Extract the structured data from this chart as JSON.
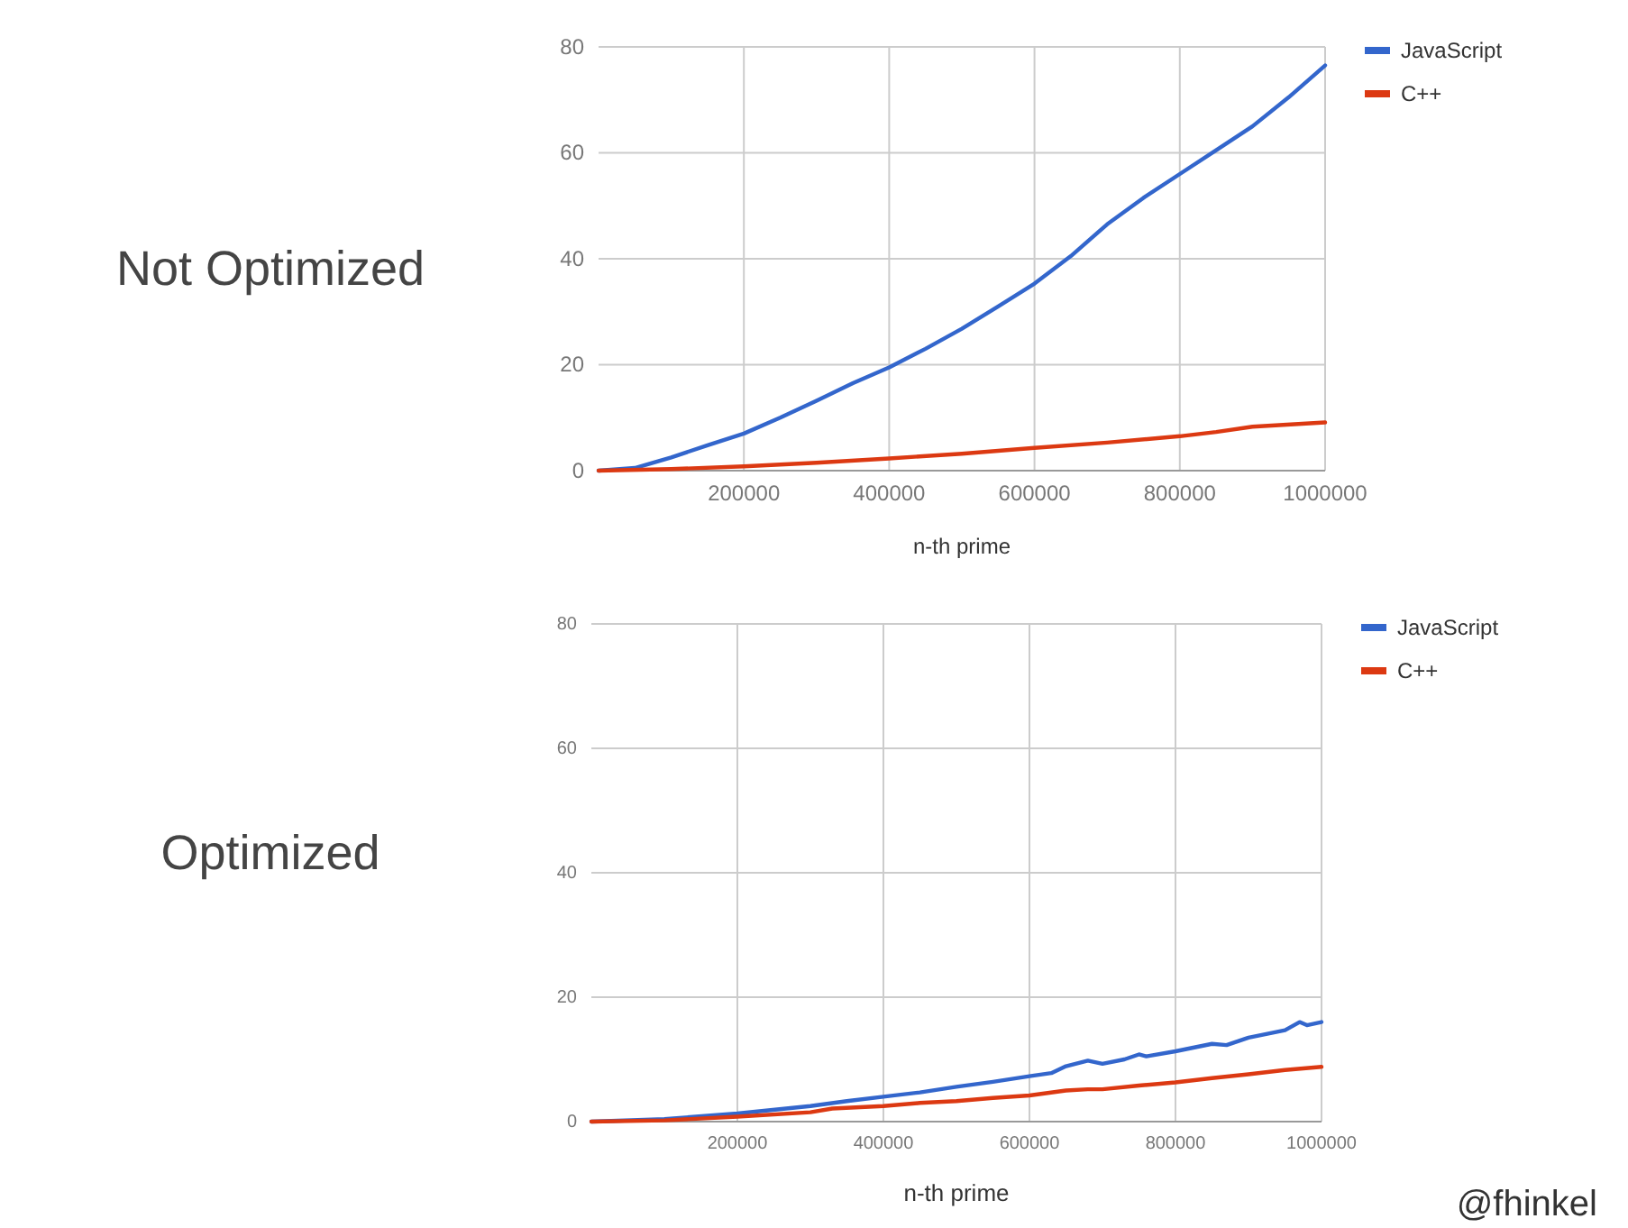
{
  "chart_data": [
    {
      "type": "line",
      "title": "Not Optimized",
      "xlabel": "n-th prime",
      "xlim": [
        0,
        1000000
      ],
      "xticks": [
        200000,
        400000,
        600000,
        800000,
        1000000
      ],
      "ylim": [
        0,
        80
      ],
      "yticks": [
        0,
        20,
        40,
        60,
        80
      ],
      "grid": true,
      "legend": "top right",
      "series": [
        {
          "name": "JavaScript",
          "color": "#3366cc",
          "x": [
            0,
            50000,
            100000,
            150000,
            200000,
            250000,
            300000,
            350000,
            400000,
            450000,
            500000,
            550000,
            600000,
            650000,
            700000,
            750000,
            800000,
            850000,
            900000,
            950000,
            1000000
          ],
          "values": [
            0,
            0.5,
            2.5,
            4.8,
            7,
            10,
            13.2,
            16.5,
            19.5,
            23,
            26.8,
            31,
            35.3,
            40.5,
            46.5,
            51.5,
            56,
            60.5,
            65,
            70.5,
            76.5
          ]
        },
        {
          "name": "C++",
          "color": "#dc3912",
          "x": [
            0,
            100000,
            200000,
            300000,
            400000,
            500000,
            600000,
            700000,
            800000,
            850000,
            900000,
            1000000
          ],
          "values": [
            0,
            0.3,
            0.8,
            1.5,
            2.3,
            3.2,
            4.3,
            5.3,
            6.5,
            7.3,
            8.3,
            9.1
          ]
        }
      ]
    },
    {
      "type": "line",
      "title": "Optimized",
      "xlabel": "n-th prime",
      "xlim": [
        0,
        1000000
      ],
      "xticks": [
        200000,
        400000,
        600000,
        800000,
        1000000
      ],
      "ylim": [
        0,
        80
      ],
      "yticks": [
        0,
        20,
        40,
        60,
        80
      ],
      "grid": true,
      "legend": "top right",
      "annotations": [
        "@fhinkel"
      ],
      "series": [
        {
          "name": "JavaScript",
          "color": "#3366cc",
          "x": [
            0,
            100000,
            200000,
            300000,
            350000,
            400000,
            450000,
            500000,
            550000,
            600000,
            630000,
            650000,
            680000,
            700000,
            730000,
            750000,
            760000,
            800000,
            850000,
            870000,
            900000,
            950000,
            970000,
            980000,
            1000000
          ],
          "values": [
            0,
            0.4,
            1.3,
            2.5,
            3.3,
            4,
            4.7,
            5.6,
            6.4,
            7.3,
            7.8,
            8.9,
            9.8,
            9.3,
            10,
            10.8,
            10.5,
            11.3,
            12.5,
            12.3,
            13.5,
            14.7,
            16,
            15.5,
            16
          ]
        },
        {
          "name": "C++",
          "color": "#dc3912",
          "x": [
            0,
            100000,
            200000,
            300000,
            330000,
            400000,
            450000,
            500000,
            550000,
            600000,
            650000,
            680000,
            700000,
            750000,
            800000,
            850000,
            900000,
            950000,
            1000000
          ],
          "values": [
            0,
            0.2,
            0.8,
            1.5,
            2.1,
            2.5,
            3,
            3.3,
            3.8,
            4.2,
            5,
            5.2,
            5.2,
            5.8,
            6.3,
            7,
            7.6,
            8.3,
            8.8
          ]
        }
      ]
    }
  ]
}
